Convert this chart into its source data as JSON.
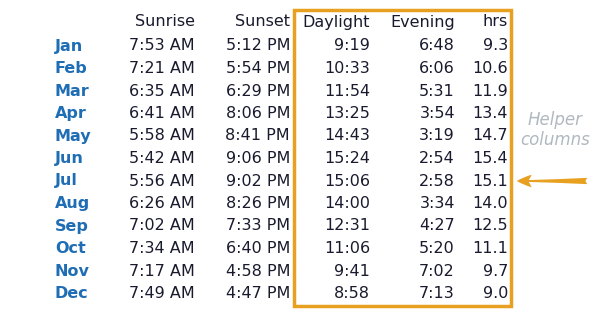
{
  "months": [
    "Jan",
    "Feb",
    "Mar",
    "Apr",
    "May",
    "Jun",
    "Jul",
    "Aug",
    "Sep",
    "Oct",
    "Nov",
    "Dec"
  ],
  "sunrise": [
    "7:53 AM",
    "7:21 AM",
    "6:35 AM",
    "6:41 AM",
    "5:58 AM",
    "5:42 AM",
    "5:56 AM",
    "6:26 AM",
    "7:02 AM",
    "7:34 AM",
    "7:17 AM",
    "7:49 AM"
  ],
  "sunset": [
    "5:12 PM",
    "5:54 PM",
    "6:29 PM",
    "8:06 PM",
    "8:41 PM",
    "9:06 PM",
    "9:02 PM",
    "8:26 PM",
    "7:33 PM",
    "6:40 PM",
    "4:58 PM",
    "4:47 PM"
  ],
  "daylight": [
    "9:19",
    "10:33",
    "11:54",
    "13:25",
    "14:43",
    "15:24",
    "15:06",
    "14:00",
    "12:31",
    "11:06",
    "9:41",
    "8:58"
  ],
  "evening": [
    "6:48",
    "6:06",
    "5:31",
    "3:54",
    "3:19",
    "2:54",
    "2:58",
    "3:34",
    "4:27",
    "5:20",
    "7:02",
    "7:13"
  ],
  "hrs": [
    "9.3",
    "10.6",
    "11.9",
    "13.4",
    "14.7",
    "15.4",
    "15.1",
    "14.0",
    "12.5",
    "11.1",
    "9.7",
    "9.0"
  ],
  "bg_color": "#ffffff",
  "month_color": "#1f6eb5",
  "data_color": "#1a1a2e",
  "highlight_box_color": "#e8a020",
  "arrow_color": "#e8a020",
  "helper_text_color": "#b0b8c0",
  "font_size": 11.5,
  "figwidth": 5.95,
  "figheight": 3.16,
  "dpi": 100
}
